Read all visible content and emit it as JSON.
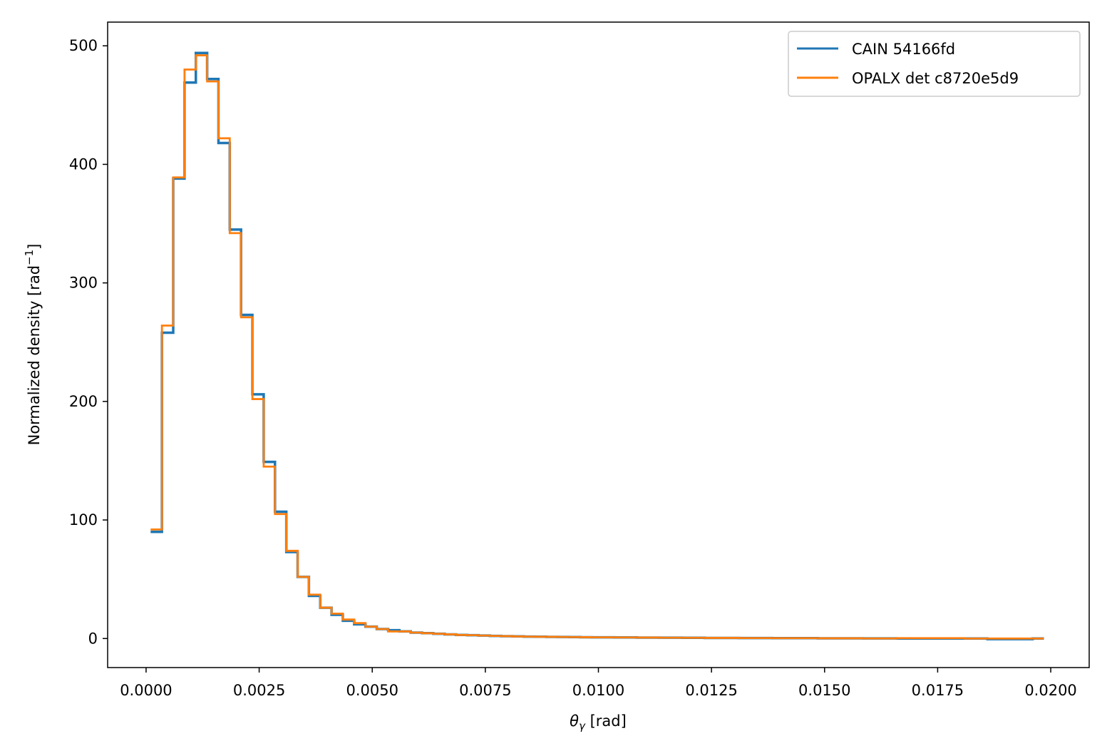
{
  "chart_data": {
    "type": "line",
    "step": "post",
    "xlabel_symbol": "θ",
    "xlabel_sub": "γ",
    "xlabel_unit": " [rad]",
    "ylabel_main": "Normalized density [rad",
    "ylabel_sup": "−1",
    "ylabel_close": "]",
    "xlim": [
      -0.00085,
      0.02085
    ],
    "ylim": [
      -24.5,
      520
    ],
    "xticks": [
      0.0,
      0.0025,
      0.005,
      0.0075,
      0.01,
      0.0125,
      0.015,
      0.0175,
      0.02
    ],
    "xtick_labels": [
      "0.0000",
      "0.0025",
      "0.0050",
      "0.0075",
      "0.0100",
      "0.0125",
      "0.0150",
      "0.0175",
      "0.0200"
    ],
    "yticks": [
      0,
      100,
      200,
      300,
      400,
      500
    ],
    "ytick_labels": [
      "0",
      "100",
      "200",
      "300",
      "400",
      "500"
    ],
    "legend_position": "upper right",
    "bin_width": 0.00025,
    "x_start": 0.0001,
    "x_end": 0.0199,
    "series": [
      {
        "name": "CAIN 54166fd",
        "color": "#1f77b4",
        "values": [
          90,
          258,
          388,
          469,
          494,
          472,
          418,
          345,
          273,
          206,
          149,
          107,
          73,
          52,
          36,
          26,
          20,
          15,
          12,
          10,
          8,
          7,
          6,
          5,
          4.5,
          4,
          3.5,
          3,
          2.8,
          2.5,
          2.2,
          2,
          1.8,
          1.6,
          1.5,
          1.4,
          1.3,
          1.2,
          1.1,
          1,
          1,
          0.9,
          0.9,
          0.8,
          0.8,
          0.7,
          0.7,
          0.6,
          0.6,
          0.5,
          0.5,
          0.5,
          0.4,
          0.4,
          0.4,
          0.3,
          0.3,
          0.3,
          0.3,
          0.2,
          0.2,
          0.2,
          0.2,
          0.1,
          0.1,
          0.1,
          0,
          0,
          0,
          0,
          0,
          0,
          0,
          0,
          -0.5,
          -0.5,
          -0.5,
          -0.5,
          0
        ]
      },
      {
        "name": "OPALX det c8720e5d9",
        "color": "#ff7f0e",
        "values": [
          92,
          264,
          389,
          480,
          492,
          470,
          422,
          342,
          271,
          202,
          145,
          105,
          74,
          52,
          37,
          26,
          21,
          16,
          13,
          10,
          8,
          6,
          6,
          5,
          4.5,
          4,
          3.5,
          3,
          2.8,
          2.5,
          2.2,
          2,
          1.8,
          1.6,
          1.5,
          1.4,
          1.3,
          1.2,
          1.1,
          1,
          1,
          0.9,
          0.9,
          0.8,
          0.8,
          0.7,
          0.7,
          0.6,
          0.6,
          0.5,
          0.5,
          0.5,
          0.4,
          0.4,
          0.4,
          0.3,
          0.3,
          0.3,
          0.3,
          0.2,
          0.2,
          0.2,
          0.2,
          0.1,
          0.1,
          0.1,
          0.3,
          0.3,
          0.3,
          0.3,
          0.3,
          0.3,
          0,
          0,
          0,
          0,
          0,
          0,
          0
        ]
      }
    ]
  }
}
